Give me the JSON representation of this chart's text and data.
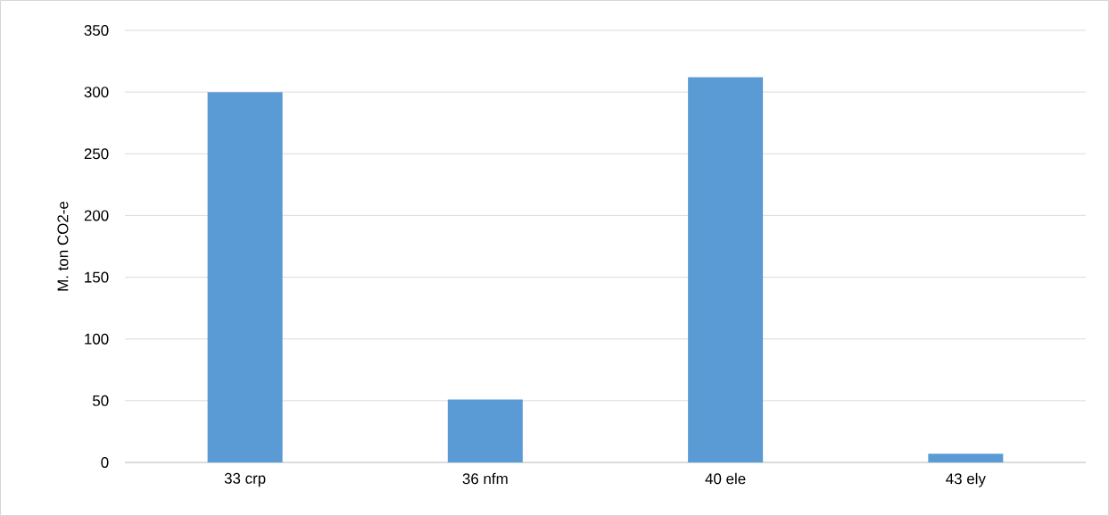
{
  "chart_data": {
    "type": "bar",
    "ylabel": "M. ton CO2-e",
    "categories": [
      "33 crp",
      "36 nfm",
      "40 ele",
      "43 ely"
    ],
    "values": [
      300,
      51,
      312,
      7
    ],
    "color": "#5b9bd5",
    "ylim": [
      0,
      350
    ],
    "yticks": [
      0,
      50,
      100,
      150,
      200,
      250,
      300,
      350
    ],
    "grid": "y"
  }
}
